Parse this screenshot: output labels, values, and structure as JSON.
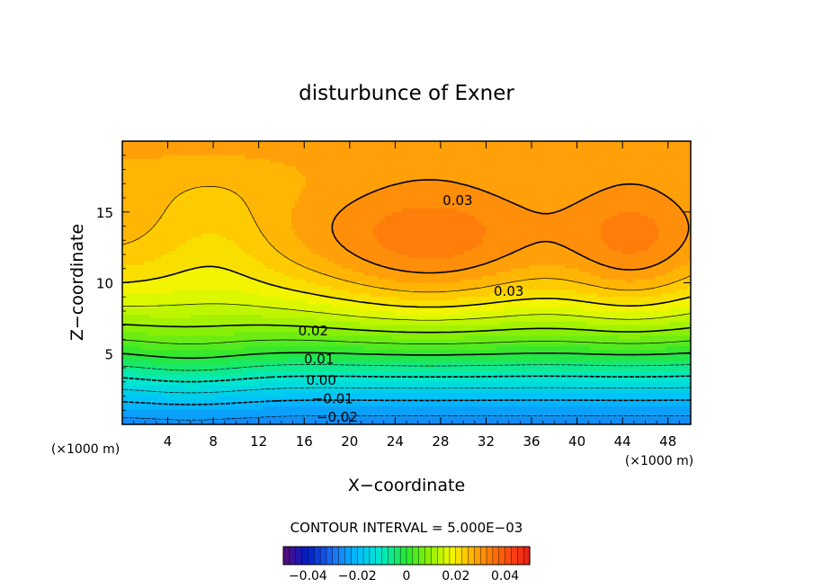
{
  "chart_data": {
    "type": "heatmap",
    "title": "disturbunce of Exner",
    "xlabel": "X−coordinate",
    "ylabel": "Z−coordinate",
    "x_unit_left": "(×1000 m)",
    "x_unit_right": "(×1000 m)",
    "xlim": [
      0,
      50
    ],
    "ylim": [
      0,
      20
    ],
    "xticks": [
      4,
      8,
      12,
      16,
      20,
      24,
      28,
      32,
      36,
      40,
      44,
      48
    ],
    "xtick_labels": [
      "4",
      "8",
      "12",
      "16",
      "20",
      "24",
      "28",
      "32",
      "36",
      "40",
      "44",
      "48"
    ],
    "yticks": [
      5,
      10,
      15
    ],
    "ytick_labels": [
      "5",
      "10",
      "15"
    ],
    "contour_interval_text": "CONTOUR INTERVAL = 5.000E−03",
    "contour_labels": [
      {
        "text": "0.03",
        "x": 29.5,
        "y": 15.8
      },
      {
        "text": "0.03",
        "x": 34.0,
        "y": 9.4
      },
      {
        "text": "0.02",
        "x": 16.8,
        "y": 6.6
      },
      {
        "text": "0.01",
        "x": 17.3,
        "y": 4.6
      },
      {
        "text": "0.00",
        "x": 17.5,
        "y": 3.1
      },
      {
        "text": "−0.01",
        "x": 18.5,
        "y": 1.8
      },
      {
        "text": "−0.02",
        "x": 18.9,
        "y": 0.5
      }
    ],
    "colorbar": {
      "range": [
        -0.05,
        0.05
      ],
      "tick_labels": [
        "−0.04",
        "−0.02",
        "0",
        "0.02",
        "0.04"
      ],
      "tick_values": [
        -0.04,
        -0.02,
        0,
        0.02,
        0.04
      ]
    }
  }
}
